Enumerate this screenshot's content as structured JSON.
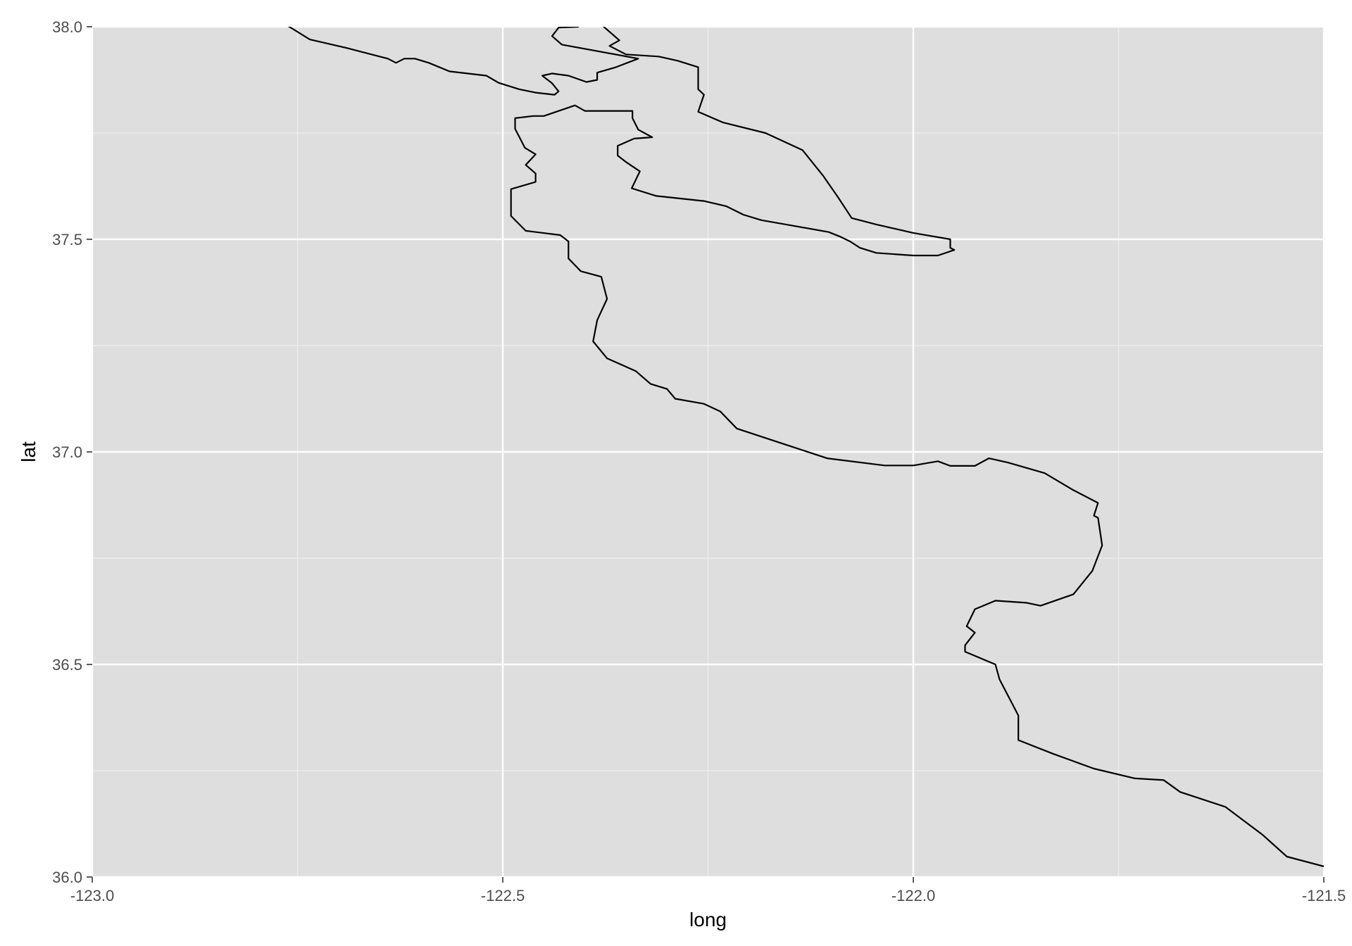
{
  "chart_data": {
    "type": "line",
    "title": "",
    "xlabel": "long",
    "ylabel": "lat",
    "xlim": [
      -123.0,
      -121.5
    ],
    "ylim": [
      36.0,
      38.0
    ],
    "grid": true,
    "x_ticks": [
      -123.0,
      -122.5,
      -122.0,
      -121.5
    ],
    "x_tick_labels": [
      "-123.0",
      "-122.5",
      "-122.0",
      "-121.5"
    ],
    "x_minor_ticks": [
      -122.75,
      -122.25,
      -121.75
    ],
    "y_ticks": [
      36.0,
      36.5,
      37.0,
      37.5,
      38.0
    ],
    "y_tick_labels": [
      "36.0",
      "36.5",
      "37.0",
      "37.5",
      "38.0"
    ],
    "y_minor_ticks": [
      36.25,
      36.75,
      37.25,
      37.75
    ],
    "colors": {
      "panel": "#dedede",
      "grid_major": "#ffffff",
      "grid_minor": "#eeeeee",
      "line": "#000000",
      "tick_text": "#4d4d4d"
    },
    "series": [
      {
        "points": [
          [
            -122.78,
            38.02
          ],
          [
            -122.76,
            38.0
          ],
          [
            -122.735,
            37.97
          ],
          [
            -122.69,
            37.95
          ],
          [
            -122.64,
            37.925
          ],
          [
            -122.63,
            37.915
          ],
          [
            -122.62,
            37.925
          ],
          [
            -122.607,
            37.925
          ],
          [
            -122.59,
            37.915
          ],
          [
            -122.565,
            37.895
          ],
          [
            -122.52,
            37.885
          ],
          [
            -122.505,
            37.868
          ],
          [
            -122.48,
            37.853
          ],
          [
            -122.46,
            37.845
          ],
          [
            -122.437,
            37.84
          ],
          [
            -122.432,
            37.848
          ],
          [
            -122.44,
            37.867
          ],
          [
            -122.452,
            37.885
          ],
          [
            -122.44,
            37.89
          ],
          [
            -122.42,
            37.885
          ],
          [
            -122.398,
            37.87
          ],
          [
            -122.385,
            37.875
          ],
          [
            -122.385,
            37.892
          ],
          [
            -122.362,
            37.905
          ],
          [
            -122.335,
            37.925
          ],
          [
            -122.428,
            37.958
          ],
          [
            -122.44,
            37.978
          ],
          [
            -122.432,
            37.998
          ],
          [
            -122.408,
            38.0
          ],
          [
            -122.408,
            38.012
          ]
        ]
      },
      {
        "points": [
          [
            -122.385,
            38.02
          ],
          [
            -122.377,
            38.0
          ],
          [
            -122.358,
            37.968
          ],
          [
            -122.37,
            37.955
          ],
          [
            -122.35,
            37.935
          ],
          [
            -122.31,
            37.93
          ],
          [
            -122.287,
            37.92
          ],
          [
            -122.262,
            37.905
          ],
          [
            -122.262,
            37.853
          ],
          [
            -122.255,
            37.84
          ],
          [
            -122.262,
            37.8
          ],
          [
            -122.232,
            37.775
          ],
          [
            -122.18,
            37.75
          ],
          [
            -122.135,
            37.71
          ],
          [
            -122.11,
            37.65
          ],
          [
            -122.092,
            37.6
          ],
          [
            -122.075,
            37.55
          ],
          [
            -122.045,
            37.535
          ],
          [
            -122.0,
            37.515
          ],
          [
            -121.955,
            37.5
          ],
          [
            -121.955,
            37.48
          ],
          [
            -121.95,
            37.475
          ],
          [
            -121.97,
            37.462
          ],
          [
            -122.0,
            37.462
          ],
          [
            -122.045,
            37.468
          ],
          [
            -122.065,
            37.48
          ],
          [
            -122.077,
            37.495
          ],
          [
            -122.09,
            37.507
          ],
          [
            -122.103,
            37.517
          ],
          [
            -122.155,
            37.535
          ],
          [
            -122.185,
            37.545
          ],
          [
            -122.207,
            37.558
          ],
          [
            -122.228,
            37.578
          ],
          [
            -122.255,
            37.59
          ],
          [
            -122.313,
            37.602
          ],
          [
            -122.343,
            37.62
          ],
          [
            -122.333,
            37.66
          ],
          [
            -122.35,
            37.682
          ],
          [
            -122.36,
            37.697
          ],
          [
            -122.36,
            37.72
          ],
          [
            -122.34,
            37.737
          ],
          [
            -122.318,
            37.74
          ],
          [
            -122.335,
            37.758
          ],
          [
            -122.342,
            37.785
          ],
          [
            -122.342,
            37.802
          ],
          [
            -122.4,
            37.802
          ],
          [
            -122.412,
            37.815
          ],
          [
            -122.45,
            37.79
          ],
          [
            -122.463,
            37.79
          ],
          [
            -122.485,
            37.785
          ],
          [
            -122.485,
            37.76
          ],
          [
            -122.473,
            37.715
          ],
          [
            -122.46,
            37.7
          ],
          [
            -122.472,
            37.675
          ],
          [
            -122.46,
            37.655
          ],
          [
            -122.46,
            37.635
          ],
          [
            -122.49,
            37.618
          ],
          [
            -122.49,
            37.555
          ],
          [
            -122.472,
            37.52
          ],
          [
            -122.43,
            37.51
          ],
          [
            -122.42,
            37.495
          ],
          [
            -122.42,
            37.455
          ],
          [
            -122.405,
            37.425
          ],
          [
            -122.38,
            37.412
          ],
          [
            -122.373,
            37.36
          ],
          [
            -122.385,
            37.31
          ],
          [
            -122.39,
            37.26
          ],
          [
            -122.373,
            37.22
          ],
          [
            -122.338,
            37.19
          ],
          [
            -122.32,
            37.16
          ],
          [
            -122.3,
            37.148
          ],
          [
            -122.29,
            37.125
          ],
          [
            -122.255,
            37.113
          ],
          [
            -122.235,
            37.095
          ],
          [
            -122.215,
            37.055
          ],
          [
            -122.16,
            37.02
          ],
          [
            -122.105,
            36.985
          ],
          [
            -122.035,
            36.968
          ],
          [
            -122.0,
            36.968
          ],
          [
            -121.97,
            36.978
          ],
          [
            -121.955,
            36.967
          ],
          [
            -121.925,
            36.967
          ],
          [
            -121.908,
            36.985
          ],
          [
            -121.885,
            36.975
          ],
          [
            -121.84,
            36.95
          ],
          [
            -121.805,
            36.91
          ],
          [
            -121.775,
            36.88
          ],
          [
            -121.78,
            36.85
          ],
          [
            -121.775,
            36.845
          ],
          [
            -121.77,
            36.78
          ],
          [
            -121.782,
            36.72
          ],
          [
            -121.805,
            36.665
          ],
          [
            -121.845,
            36.638
          ],
          [
            -121.862,
            36.645
          ],
          [
            -121.9,
            36.65
          ],
          [
            -121.925,
            36.63
          ],
          [
            -121.935,
            36.59
          ],
          [
            -121.925,
            36.575
          ],
          [
            -121.937,
            36.545
          ],
          [
            -121.937,
            36.53
          ],
          [
            -121.9,
            36.5
          ],
          [
            -121.895,
            36.465
          ],
          [
            -121.872,
            36.38
          ],
          [
            -121.872,
            36.322
          ],
          [
            -121.83,
            36.29
          ],
          [
            -121.78,
            36.255
          ],
          [
            -121.73,
            36.232
          ],
          [
            -121.695,
            36.228
          ],
          [
            -121.675,
            36.2
          ],
          [
            -121.62,
            36.165
          ],
          [
            -121.575,
            36.1
          ],
          [
            -121.545,
            36.048
          ],
          [
            -121.5,
            36.025
          ]
        ]
      }
    ]
  }
}
